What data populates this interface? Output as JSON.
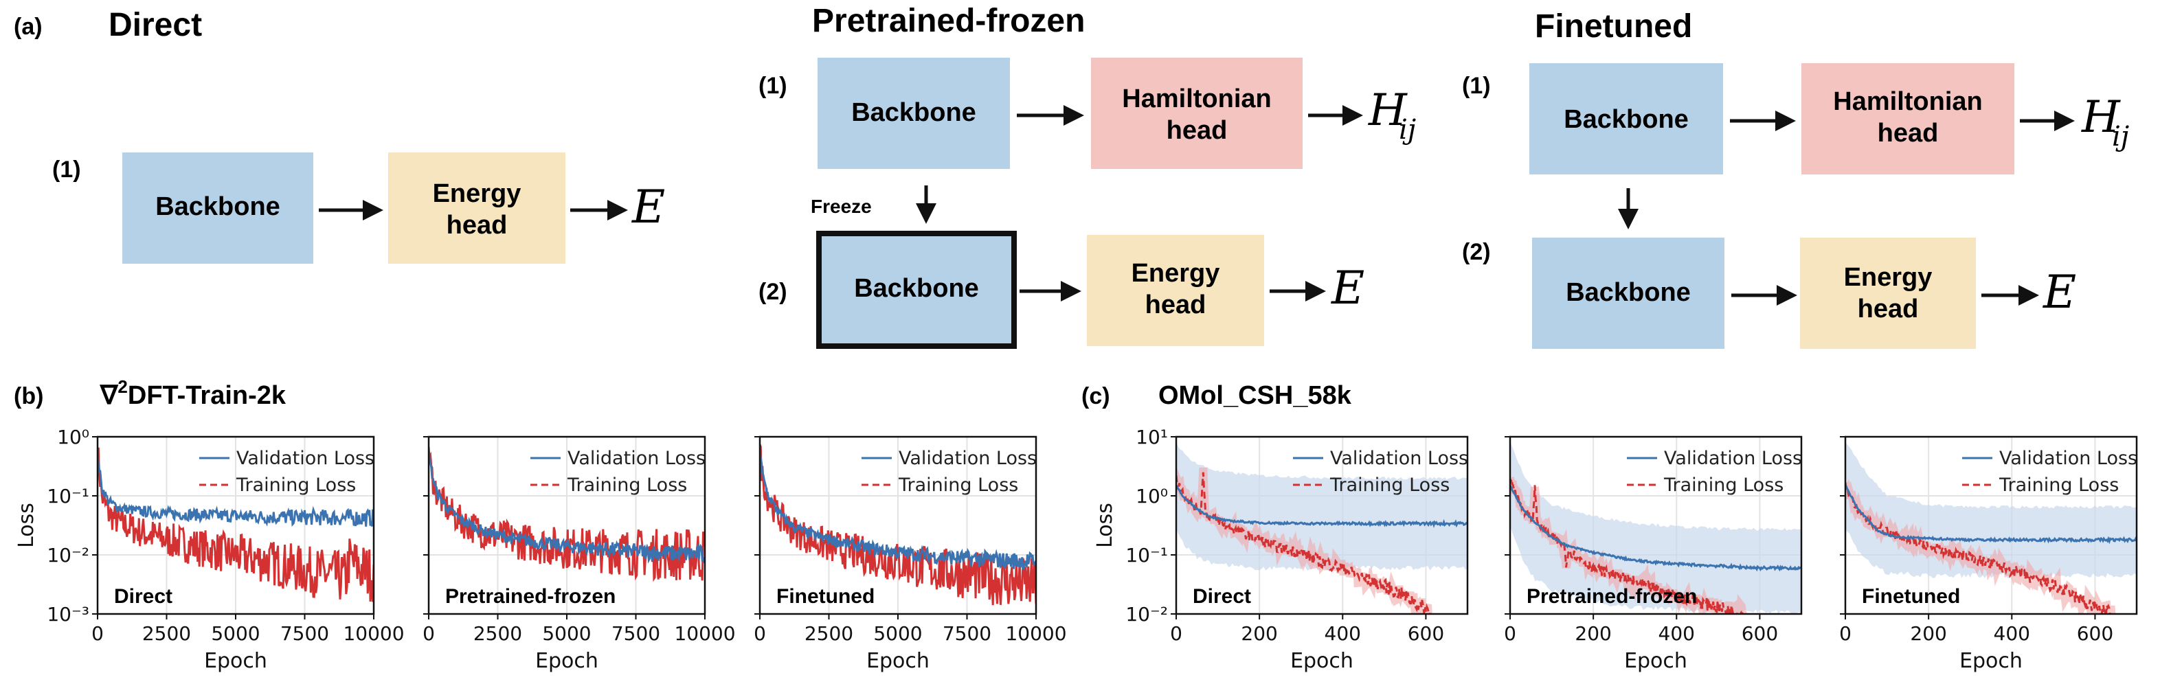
{
  "panel_a": {
    "label": "(a)",
    "direct": {
      "title": "Direct",
      "step1": "(1)",
      "backbone": "Backbone",
      "energy_head_1": "Energy",
      "energy_head_2": "head",
      "output": "E"
    },
    "pretrained": {
      "title": "Pretrained-frozen",
      "step1": "(1)",
      "step2": "(2)",
      "backbone": "Backbone",
      "hamiltonian_1": "Hamiltonian",
      "hamiltonian_2": "head",
      "output_h": "H",
      "output_h_sub": "ij",
      "freeze_label": "Freeze",
      "backbone_frozen": "Backbone",
      "energy_head_1": "Energy",
      "energy_head_2": "head",
      "output_e": "E"
    },
    "finetuned": {
      "title": "Finetuned",
      "step1": "(1)",
      "step2": "(2)",
      "backbone": "Backbone",
      "hamiltonian_1": "Hamiltonian",
      "hamiltonian_2": "head",
      "output_h": "H",
      "output_h_sub": "ij",
      "backbone2": "Backbone",
      "energy_head_1": "Energy",
      "energy_head_2": "head",
      "output_e": "E"
    },
    "colors": {
      "backbone": "#b5d1e8",
      "energy": "#f7e5c0",
      "hamiltonian": "#f4c4c0"
    }
  },
  "panel_b": {
    "label": "(b)",
    "dataset_prefix": "∇",
    "dataset_sup": "2",
    "dataset_suffix": "DFT-Train-2k"
  },
  "panel_c": {
    "label": "(c)",
    "dataset": "OMol_CSH_58k"
  },
  "colors": {
    "validation": "#3a73b0",
    "training": "#d43232",
    "band": "#c7d9ec"
  },
  "chart_data": [
    {
      "type": "line",
      "title": "Direct",
      "xlabel": "Epoch",
      "ylabel": "Loss",
      "yscale": "log",
      "xlim": [
        0,
        10000
      ],
      "ylim": [
        0.001,
        1
      ],
      "xticks": [
        "0",
        "2500",
        "5000",
        "7500",
        "10000"
      ],
      "yticks": [
        "10⁻³",
        "10⁻²",
        "10⁻¹",
        "10⁰"
      ],
      "legend": [
        "Validation Loss",
        "Training Loss"
      ],
      "series": [
        {
          "name": "Validation Loss",
          "x": [
            0,
            150,
            400,
            800,
            1500,
            2500,
            4000,
            6000,
            8000,
            10000
          ],
          "y": [
            0.5,
            0.14,
            0.08,
            0.062,
            0.055,
            0.05,
            0.047,
            0.044,
            0.043,
            0.042
          ]
        },
        {
          "name": "Training Loss",
          "x": [
            0,
            150,
            400,
            800,
            1500,
            2500,
            3500,
            4500,
            5500,
            6500,
            7500,
            8500,
            9000,
            9100,
            9500,
            10000
          ],
          "y": [
            0.6,
            0.1,
            0.05,
            0.035,
            0.025,
            0.018,
            0.014,
            0.011,
            0.009,
            0.007,
            0.0055,
            0.0045,
            0.004,
            0.008,
            0.006,
            0.0045
          ]
        }
      ]
    },
    {
      "type": "line",
      "title": "Pretrained-frozen",
      "xlabel": "Epoch",
      "ylabel": "",
      "yscale": "log",
      "xlim": [
        0,
        10000
      ],
      "ylim": [
        0.001,
        1
      ],
      "xticks": [
        "0",
        "2500",
        "5000",
        "7500",
        "10000"
      ],
      "legend": [
        "Validation Loss",
        "Training Loss"
      ],
      "series": [
        {
          "name": "Validation Loss",
          "x": [
            0,
            100,
            300,
            700,
            1200,
            2000,
            3000,
            4000,
            5000,
            6000,
            7000,
            8000,
            9000,
            10000
          ],
          "y": [
            0.6,
            0.25,
            0.11,
            0.06,
            0.038,
            0.025,
            0.019,
            0.016,
            0.014,
            0.013,
            0.012,
            0.011,
            0.0105,
            0.0102
          ]
        },
        {
          "name": "Training Loss",
          "x": [
            0,
            100,
            300,
            700,
            1200,
            2000,
            3000,
            4000,
            5000,
            6000,
            7000,
            8000,
            9000,
            10000
          ],
          "y": [
            0.6,
            0.24,
            0.105,
            0.058,
            0.036,
            0.024,
            0.018,
            0.015,
            0.013,
            0.0122,
            0.0113,
            0.0105,
            0.0101,
            0.0099
          ]
        }
      ]
    },
    {
      "type": "line",
      "title": "Finetuned",
      "xlabel": "Epoch",
      "ylabel": "",
      "yscale": "log",
      "xlim": [
        0,
        10000
      ],
      "ylim": [
        0.001,
        1
      ],
      "xticks": [
        "0",
        "2500",
        "5000",
        "7500",
        "10000"
      ],
      "legend": [
        "Validation Loss",
        "Training Loss"
      ],
      "series": [
        {
          "name": "Validation Loss",
          "x": [
            0,
            100,
            300,
            700,
            1200,
            2000,
            3000,
            4000,
            5000,
            6000,
            7000,
            8000,
            9000,
            10000
          ],
          "y": [
            0.6,
            0.22,
            0.1,
            0.05,
            0.03,
            0.021,
            0.016,
            0.013,
            0.011,
            0.0098,
            0.009,
            0.0085,
            0.008,
            0.0078
          ]
        },
        {
          "name": "Training Loss",
          "x": [
            0,
            100,
            300,
            700,
            1200,
            2000,
            3000,
            4000,
            5000,
            6000,
            7000,
            8000,
            9000,
            10000
          ],
          "y": [
            0.6,
            0.2,
            0.09,
            0.045,
            0.026,
            0.017,
            0.012,
            0.0095,
            0.0075,
            0.006,
            0.005,
            0.0042,
            0.0035,
            0.003
          ]
        }
      ]
    },
    {
      "type": "line",
      "title": "Direct",
      "xlabel": "Epoch",
      "ylabel": "Loss",
      "yscale": "log",
      "xlim": [
        0,
        700
      ],
      "ylim": [
        0.01,
        10
      ],
      "xticks": [
        "0",
        "200",
        "400",
        "600"
      ],
      "yticks": [
        "10⁻²",
        "10⁻¹",
        "10⁰",
        "10¹"
      ],
      "legend": [
        "Validation Loss",
        "Training Loss"
      ],
      "series": [
        {
          "name": "Validation Loss",
          "x": [
            0,
            20,
            50,
            80,
            120,
            200,
            300,
            400,
            500,
            600,
            700
          ],
          "y": [
            1.5,
            0.9,
            0.6,
            0.45,
            0.38,
            0.35,
            0.34,
            0.34,
            0.34,
            0.34,
            0.34
          ]
        },
        {
          "name": "Validation band upper",
          "x": [
            0,
            20,
            50,
            100,
            200,
            300,
            400,
            500,
            600,
            700
          ],
          "y": [
            8,
            5,
            3.5,
            2.6,
            2.2,
            2.1,
            2.0,
            2.0,
            2.0,
            2.0
          ]
        },
        {
          "name": "Validation band lower",
          "x": [
            0,
            20,
            50,
            100,
            200,
            300,
            400,
            500,
            600,
            700
          ],
          "y": [
            0.3,
            0.15,
            0.09,
            0.07,
            0.06,
            0.06,
            0.06,
            0.06,
            0.06,
            0.06
          ]
        },
        {
          "name": "Training Loss",
          "x": [
            0,
            20,
            50,
            60,
            65,
            70,
            90,
            120,
            200,
            250,
            300,
            350,
            400,
            450,
            500,
            550,
            600,
            610
          ],
          "y": [
            2.0,
            1.0,
            0.6,
            0.55,
            3.0,
            0.5,
            0.42,
            0.3,
            0.18,
            0.13,
            0.11,
            0.075,
            0.06,
            0.04,
            0.03,
            0.02,
            0.012,
            0.01
          ]
        }
      ]
    },
    {
      "type": "line",
      "title": "Pretrained-frozen",
      "xlabel": "Epoch",
      "ylabel": "",
      "yscale": "log",
      "xlim": [
        0,
        700
      ],
      "ylim": [
        0.01,
        10
      ],
      "xticks": [
        "0",
        "200",
        "400",
        "600"
      ],
      "legend": [
        "Validation Loss",
        "Training Loss"
      ],
      "series": [
        {
          "name": "Validation Loss",
          "x": [
            0,
            30,
            60,
            100,
            140,
            200,
            300,
            400,
            500,
            600,
            700
          ],
          "y": [
            1.5,
            0.6,
            0.35,
            0.2,
            0.14,
            0.11,
            0.08,
            0.07,
            0.065,
            0.06,
            0.06
          ]
        },
        {
          "name": "Validation band upper",
          "x": [
            0,
            30,
            60,
            100,
            200,
            300,
            400,
            500,
            600,
            700
          ],
          "y": [
            8,
            2.5,
            1.2,
            0.7,
            0.45,
            0.35,
            0.3,
            0.28,
            0.27,
            0.27
          ]
        },
        {
          "name": "Validation band lower",
          "x": [
            0,
            30,
            60,
            100,
            200,
            300,
            400,
            500,
            600,
            700
          ],
          "y": [
            0.3,
            0.08,
            0.04,
            0.025,
            0.016,
            0.013,
            0.012,
            0.011,
            0.011,
            0.011
          ]
        },
        {
          "name": "Training Loss",
          "x": [
            0,
            30,
            55,
            60,
            65,
            100,
            130,
            135,
            140,
            200,
            300,
            400,
            500,
            560
          ],
          "y": [
            2.0,
            0.6,
            0.4,
            1.5,
            0.35,
            0.2,
            0.15,
            0.07,
            0.12,
            0.06,
            0.035,
            0.02,
            0.013,
            0.01
          ]
        }
      ]
    },
    {
      "type": "line",
      "title": "Finetuned",
      "xlabel": "Epoch",
      "ylabel": "",
      "yscale": "log",
      "xlim": [
        0,
        700
      ],
      "ylim": [
        0.01,
        10
      ],
      "xticks": [
        "0",
        "200",
        "400",
        "600"
      ],
      "legend": [
        "Validation Loss",
        "Training Loss"
      ],
      "series": [
        {
          "name": "Validation Loss",
          "x": [
            0,
            30,
            60,
            80,
            120,
            200,
            300,
            400,
            500,
            600,
            700
          ],
          "y": [
            1.5,
            0.6,
            0.35,
            0.25,
            0.2,
            0.19,
            0.18,
            0.18,
            0.18,
            0.18,
            0.18
          ]
        },
        {
          "name": "Validation band upper",
          "x": [
            0,
            30,
            60,
            100,
            200,
            300,
            400,
            500,
            600,
            700
          ],
          "y": [
            8,
            4,
            2.0,
            1.0,
            0.7,
            0.65,
            0.65,
            0.65,
            0.65,
            0.65
          ]
        },
        {
          "name": "Validation band lower",
          "x": [
            0,
            30,
            60,
            100,
            200,
            300,
            400,
            500,
            600,
            700
          ],
          "y": [
            0.3,
            0.12,
            0.07,
            0.05,
            0.045,
            0.045,
            0.045,
            0.045,
            0.045,
            0.045
          ]
        },
        {
          "name": "Training Loss",
          "x": [
            0,
            30,
            60,
            100,
            150,
            200,
            250,
            300,
            350,
            400,
            450,
            500,
            550,
            600,
            640
          ],
          "y": [
            1.5,
            0.55,
            0.35,
            0.25,
            0.18,
            0.14,
            0.11,
            0.09,
            0.07,
            0.055,
            0.04,
            0.03,
            0.02,
            0.013,
            0.01
          ]
        }
      ]
    }
  ]
}
